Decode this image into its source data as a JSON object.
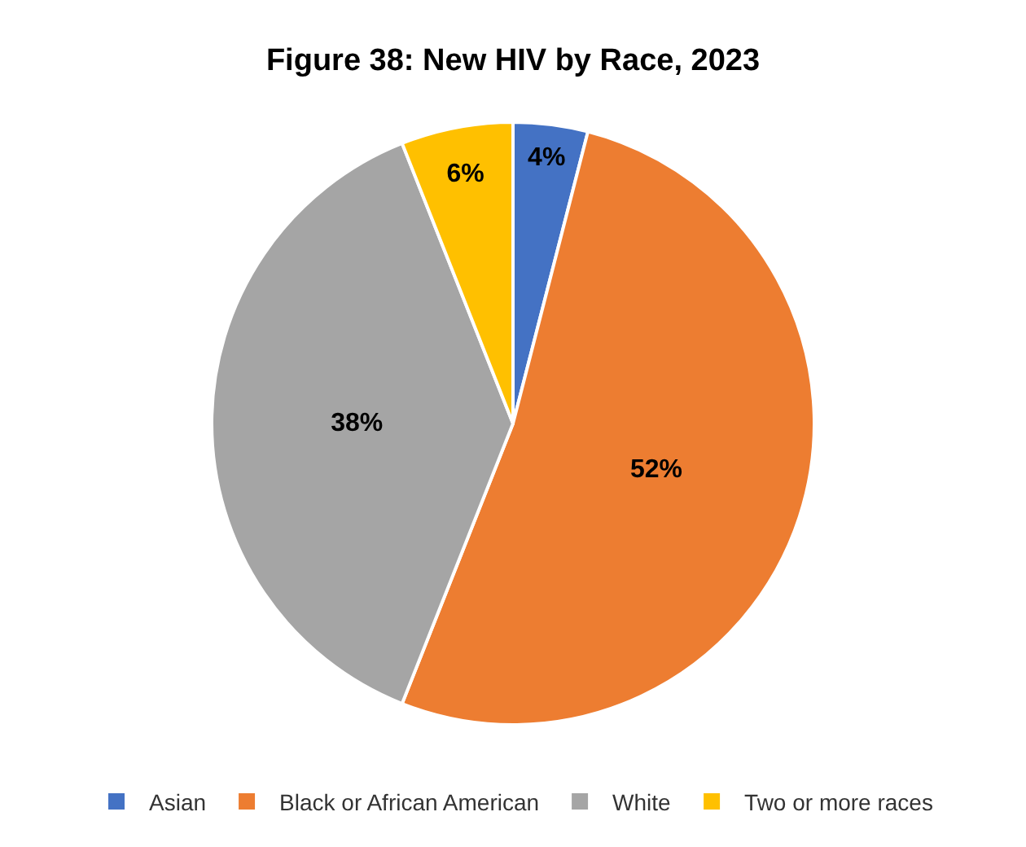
{
  "chart_data": {
    "type": "pie",
    "title": "Figure 38: New HIV by Race, 2023",
    "categories": [
      "Asian",
      "Black or African American",
      "White",
      "Two or more races"
    ],
    "values": [
      4,
      52,
      38,
      6
    ],
    "value_labels": [
      "4%",
      "52%",
      "38%",
      "6%"
    ],
    "colors": [
      "#4472c4",
      "#ed7d31",
      "#a5a5a5",
      "#ffc000"
    ],
    "legend": "bottom"
  }
}
